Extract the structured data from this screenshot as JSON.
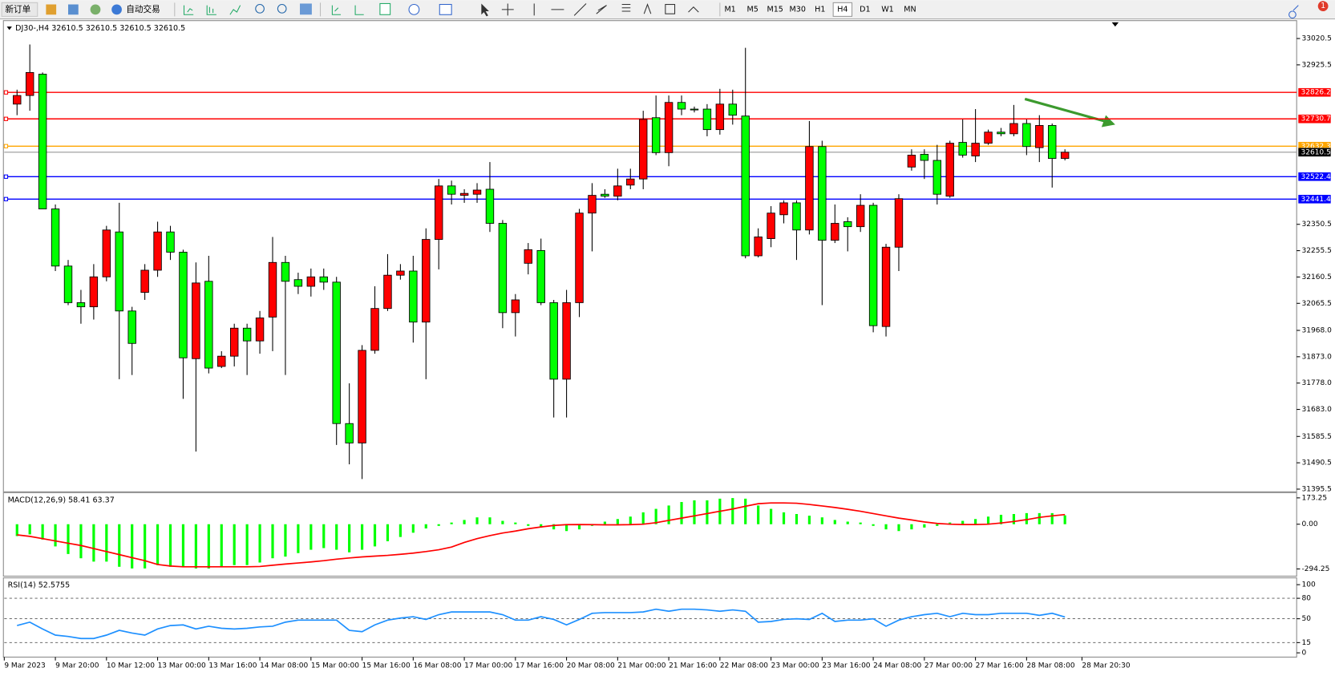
{
  "toolbar": {
    "new_order": "新订单",
    "auto_trading": "自动交易",
    "timeframes": [
      "M1",
      "M5",
      "M15",
      "M30",
      "H1",
      "H4",
      "D1",
      "W1",
      "MN"
    ],
    "active_timeframe": "H4",
    "notifications": 1
  },
  "chart_data": [
    {
      "type": "candlestick",
      "title": "DJ30-,H4 32610.5 32610.5 32610.5 32610.5",
      "up_color": "#ff0000",
      "down_color": "#00ff00",
      "categories": [
        "9 Mar 2023",
        null,
        null,
        null,
        "9 Mar 20:00",
        null,
        null,
        null,
        "10 Mar 12:00",
        null,
        null,
        null,
        "13 Mar 00:00",
        null,
        null,
        null,
        "13 Mar 16:00",
        null,
        null,
        null,
        "14 Mar 08:00",
        null,
        null,
        null,
        "15 Mar 00:00",
        null,
        null,
        null,
        "15 Mar 16:00",
        null,
        null,
        null,
        "16 Mar 08:00",
        null,
        null,
        null,
        "17 Mar 00:00",
        null,
        null,
        null,
        "17 Mar 16:00",
        null,
        null,
        null,
        "20 Mar 08:00",
        null,
        null,
        null,
        "21 Mar 00:00",
        null,
        null,
        null,
        "21 Mar 16:00",
        null,
        null,
        null,
        "22 Mar 08:00",
        null,
        null,
        null,
        "23 Mar 00:00",
        null,
        null,
        null,
        "23 Mar 16:00",
        null,
        null,
        null,
        "24 Mar 08:00",
        null,
        null,
        null,
        "27 Mar 00:00",
        null,
        null,
        null,
        "27 Mar 16:00",
        null,
        null,
        null,
        "28 Mar 08:00",
        null,
        "28 Mar 20:30"
      ],
      "open": [
        32784,
        32815,
        32892,
        32406,
        32200,
        32068,
        32053,
        32161,
        32323,
        32038,
        32105,
        32185,
        32323,
        32250,
        31866,
        32145,
        31838,
        31875,
        31976,
        31930,
        32016,
        32213,
        32151,
        32127,
        32161,
        32142,
        31632,
        31562,
        31896,
        32047,
        32167,
        32182,
        31998,
        32296,
        32489,
        32455,
        32459,
        32477,
        32354,
        32032,
        32210,
        32256,
        32068,
        31792,
        32068,
        32391,
        32459,
        32452,
        32492,
        32514,
        32735,
        32609,
        32790,
        32766,
        32766,
        32692,
        32784,
        32741,
        32237,
        32299,
        32385,
        32428,
        32330,
        32631,
        32293,
        32360,
        32342,
        32419,
        31982,
        32268,
        32557,
        32603,
        32581,
        32452,
        32646,
        32597,
        32643,
        32683,
        32677,
        32714,
        32627,
        32707,
        32588
      ],
      "high": [
        32836,
        32999,
        32898,
        32422,
        32222,
        32114,
        32207,
        32345,
        32428,
        32053,
        32207,
        32360,
        32345,
        32259,
        32213,
        32237,
        31893,
        31992,
        31992,
        32038,
        32305,
        32237,
        32176,
        32191,
        32191,
        32161,
        31777,
        31915,
        32127,
        32243,
        32207,
        32237,
        32336,
        32514,
        32508,
        32477,
        32499,
        32575,
        32366,
        32099,
        32283,
        32299,
        32078,
        32114,
        32406,
        32499,
        32477,
        32551,
        32551,
        32760,
        32815,
        32815,
        32815,
        32775,
        32784,
        32839,
        32836,
        32987,
        32336,
        32416,
        32437,
        32437,
        32723,
        32652,
        32422,
        32376,
        32459,
        32428,
        32280,
        32459,
        32621,
        32621,
        32637,
        32652,
        32729,
        32766,
        32692,
        32698,
        32781,
        32729,
        32744,
        32714,
        32621
      ],
      "low": [
        32744,
        32760,
        32406,
        32182,
        32059,
        31992,
        32007,
        32145,
        31792,
        31807,
        32078,
        32161,
        32222,
        31721,
        31531,
        31813,
        31832,
        31838,
        31807,
        31884,
        31893,
        31807,
        32099,
        32090,
        32114,
        31555,
        31485,
        31432,
        31884,
        32038,
        32151,
        31924,
        31792,
        32188,
        32422,
        32428,
        32428,
        32323,
        31976,
        31946,
        32170,
        32059,
        31654,
        31654,
        32016,
        32253,
        32446,
        32437,
        32477,
        32477,
        32600,
        32560,
        32744,
        32754,
        32668,
        32674,
        32710,
        32228,
        32231,
        32268,
        32354,
        32222,
        32314,
        32059,
        32283,
        32253,
        32323,
        31961,
        31946,
        32182,
        32544,
        32514,
        32422,
        32446,
        32591,
        32575,
        32637,
        32668,
        32668,
        32600,
        32575,
        32483,
        32581
      ],
      "close": [
        32815,
        32898,
        32406,
        32200,
        32068,
        32053,
        32161,
        32330,
        32038,
        31921,
        32185,
        32323,
        32250,
        31869,
        32139,
        31832,
        31875,
        31976,
        31930,
        32013,
        32213,
        32145,
        32127,
        32161,
        32142,
        31632,
        31562,
        31896,
        32047,
        32167,
        32182,
        31998,
        32296,
        32489,
        32459,
        32462,
        32474,
        32354,
        32032,
        32078,
        32259,
        32068,
        31792,
        32068,
        32391,
        32455,
        32452,
        32489,
        32514,
        32729,
        32609,
        32790,
        32766,
        32763,
        32692,
        32784,
        32744,
        32237,
        32305,
        32391,
        32428,
        32330,
        32631,
        32293,
        32354,
        32342,
        32419,
        31985,
        32268,
        32443,
        32600,
        32581,
        32459,
        32643,
        32600,
        32643,
        32683,
        32677,
        32714,
        32631,
        32707,
        32588,
        32610.5
      ],
      "bid": 32610.5,
      "levels": [
        {
          "value": 32826.2,
          "color": "#ff0000"
        },
        {
          "value": 32730.7,
          "color": "#ff0000"
        },
        {
          "value": 32632.3,
          "color": "#ffa500"
        },
        {
          "value": 32522.4,
          "color": "#0000ff"
        },
        {
          "value": 32441.4,
          "color": "#0000ff"
        }
      ],
      "ylim": [
        31389,
        33082
      ],
      "yticks": [
        33020.5,
        32925.5,
        32350.5,
        32255.5,
        32160.5,
        32065.5,
        {
          "value": 31968,
          "label": "31968.0"
        },
        {
          "value": 31873,
          "label": "31873.0"
        },
        {
          "value": 31778,
          "label": "31778.0"
        },
        {
          "value": 31683,
          "label": "31683.0"
        },
        31585.5,
        31490.5,
        31395.5
      ]
    },
    {
      "type": "macd",
      "title": "MACD(12,26,9) 58.41 63.37",
      "ylim": [
        -336,
        202
      ],
      "yticks": [
        173.25,
        {
          "value": 0,
          "label": "0.00"
        },
        -294.25
      ],
      "series": [
        {
          "name": "MACD",
          "color": "#00ff00",
          "values": [
            -78,
            -67,
            -101,
            -146,
            -196,
            -224,
            -246,
            -246,
            -280,
            -291,
            -291,
            -269,
            -280,
            -280,
            -291,
            -291,
            -280,
            -269,
            -269,
            -252,
            -224,
            -213,
            -190,
            -168,
            -157,
            -168,
            -185,
            -168,
            -146,
            -112,
            -84,
            -56,
            -28,
            -11,
            11,
            28,
            45,
            45,
            22,
            11,
            -11,
            -22,
            -34,
            -45,
            -34,
            -11,
            17,
            34,
            50,
            78,
            101,
            123,
            146,
            157,
            157,
            168,
            172,
            168,
            123,
            101,
            78,
            67,
            56,
            45,
            28,
            17,
            11,
            -11,
            -34,
            -45,
            -34,
            -22,
            -11,
            11,
            22,
            34,
            50,
            62,
            67,
            73,
            73,
            73,
            58.41
          ]
        },
        {
          "name": "Signal",
          "color": "#ff0000",
          "values": [
            -70,
            -80,
            -95,
            -110,
            -125,
            -140,
            -160,
            -180,
            -200,
            -220,
            -240,
            -265,
            -275,
            -280,
            -280,
            -280,
            -280,
            -280,
            -280,
            -278,
            -270,
            -262,
            -255,
            -248,
            -240,
            -230,
            -222,
            -215,
            -210,
            -205,
            -198,
            -190,
            -180,
            -168,
            -150,
            -120,
            -95,
            -75,
            -58,
            -45,
            -30,
            -18,
            -8,
            -3,
            -2,
            -3,
            -4,
            -4,
            -3,
            0,
            10,
            25,
            40,
            55,
            70,
            85,
            100,
            118,
            135,
            140,
            140,
            138,
            130,
            120,
            110,
            98,
            85,
            70,
            55,
            40,
            28,
            15,
            5,
            0,
            -2,
            -2,
            0,
            8,
            18,
            30,
            45,
            55,
            63.37
          ]
        }
      ]
    },
    {
      "type": "rsi",
      "title": "RSI(14) 52.5755",
      "ylim": [
        -5,
        107.5
      ],
      "yticks": [
        100,
        80,
        50,
        15,
        0
      ],
      "levels": [
        80,
        50,
        15
      ],
      "color": "#1e90ff",
      "values": [
        40,
        45,
        35,
        26,
        24,
        21,
        21,
        26,
        33,
        29,
        26,
        35,
        40,
        41,
        35,
        39,
        36,
        35,
        36,
        38,
        39,
        45,
        48,
        48,
        48,
        48,
        33,
        31,
        41,
        48,
        51,
        53,
        49,
        56,
        60,
        60,
        60,
        60,
        56,
        48,
        48,
        53,
        49,
        41,
        49,
        58,
        59,
        59,
        59,
        60,
        64,
        61,
        64,
        64,
        63,
        61,
        63,
        61,
        45,
        46,
        49,
        50,
        49,
        58,
        46,
        48,
        48,
        50,
        39,
        48,
        53,
        56,
        58,
        53,
        58,
        56,
        56,
        58,
        58,
        58,
        55,
        58,
        52.5755
      ]
    }
  ]
}
